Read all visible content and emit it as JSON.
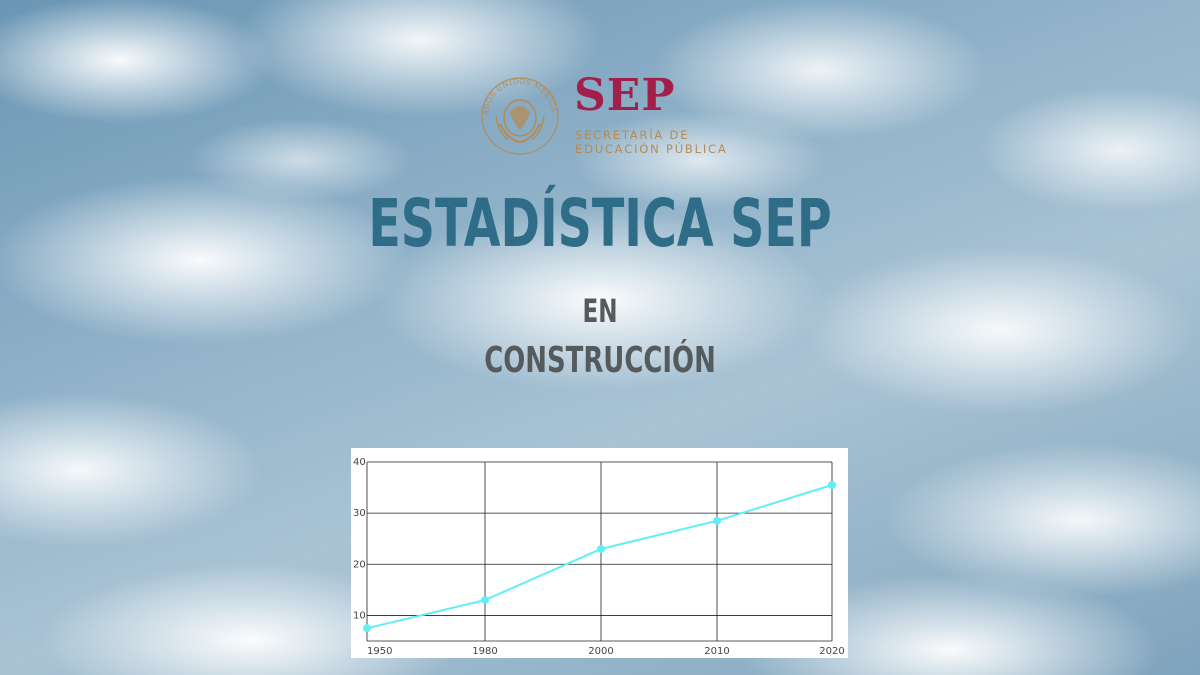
{
  "brand": {
    "seal_text": "ESTADOS UNIDOS MEXICANOS",
    "name": "SEP",
    "subtitle_line1": "SECRETARÍA DE",
    "subtitle_line2": "EDUCACIÓN PÚBLICA",
    "color_primary": "#a31f4b",
    "color_secondary": "#b48b57"
  },
  "main": {
    "title": "ESTADÍSTICA SEP",
    "status_line1": "EN",
    "status_line2": "CONSTRUCCIÓN",
    "title_color": "#2e6c87"
  },
  "chart_data": {
    "type": "line",
    "title": "",
    "xlabel": "",
    "ylabel": "",
    "x": [
      1950,
      1980,
      2000,
      2010,
      2020
    ],
    "x_tick_labels": [
      "1950",
      "1980",
      "2000",
      "2010",
      "2020"
    ],
    "y_tick_labels": [
      "10",
      "20",
      "30",
      "40"
    ],
    "ylim": [
      5,
      40
    ],
    "series": [
      {
        "values": [
          7.5,
          13,
          23,
          28.5,
          35.5
        ],
        "color": "#5ff0f6"
      }
    ],
    "grid": true
  }
}
